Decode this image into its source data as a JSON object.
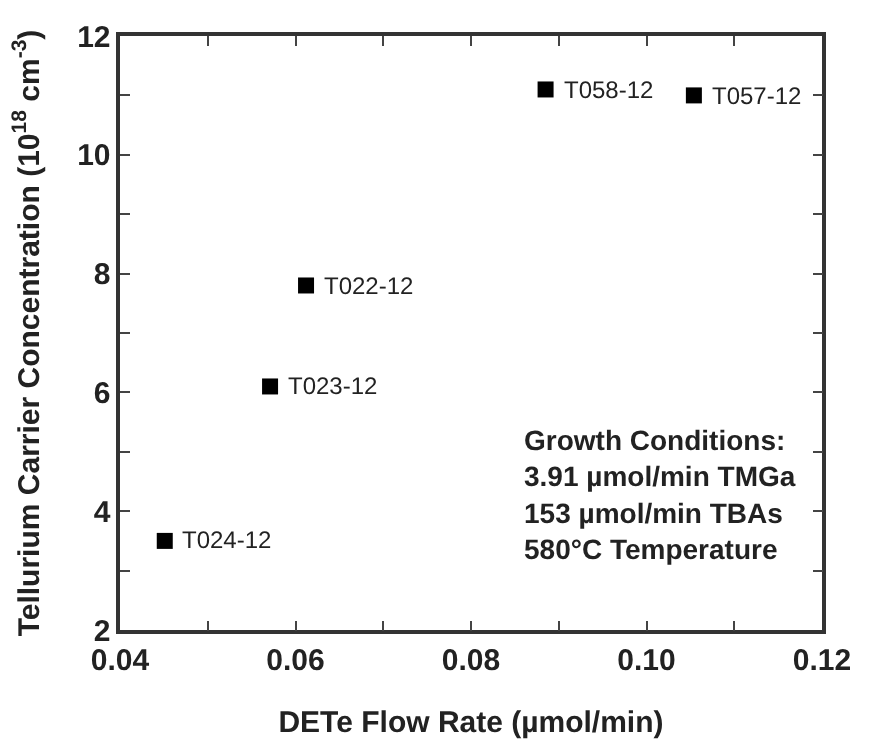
{
  "chart_data": {
    "type": "scatter",
    "xlabel": "DETe Flow Rate (µmol/min)",
    "ylabel": "Tellurium Carrier Concentration (10$^{18}$ cm$^{-3}$)",
    "series": [
      {
        "color": "#000000",
        "x": [
          0.0451,
          0.0571,
          0.0612,
          0.0885,
          0.1054
        ],
        "values": [
          3.5,
          6.1,
          7.8,
          11.1,
          11.0
        ]
      }
    ],
    "xlim": [
      0.04,
      0.12
    ],
    "xticks": [
      0.04,
      {
        "value": 0.05,
        "label": null
      },
      0.06,
      {
        "value": 0.07,
        "label": null
      },
      0.08,
      {
        "value": 0.09,
        "label": null
      },
      {
        "value": 0.1,
        "label": "0.10"
      },
      {
        "value": 0.11,
        "label": null
      },
      0.12
    ],
    "ylim": [
      2,
      12
    ],
    "yticks": [
      2,
      {
        "value": 3,
        "label": null
      },
      4,
      {
        "value": 5,
        "label": null
      },
      6,
      {
        "value": 7,
        "label": null
      },
      8,
      {
        "value": 9,
        "label": null
      },
      10,
      {
        "value": 11,
        "label": null
      },
      12
    ],
    "marker": "square",
    "grid": false,
    "annotations": [
      {
        "text": "T024-12",
        "x": 0.0451,
        "y": 3.5
      },
      {
        "text": "T023-12",
        "x": 0.0571,
        "y": 6.1
      },
      {
        "text": "T022-12",
        "x": 0.0612,
        "y": 7.8
      },
      {
        "text": "T058-12",
        "x": 0.0885,
        "y": 11.1
      },
      {
        "text": "T057-12",
        "x": 0.1054,
        "y": 11.0
      },
      "Growth Conditions:\n3.91 µmol/min TMGa\n153 µmol/min TBAs\n580°C Temperature"
    ]
  }
}
